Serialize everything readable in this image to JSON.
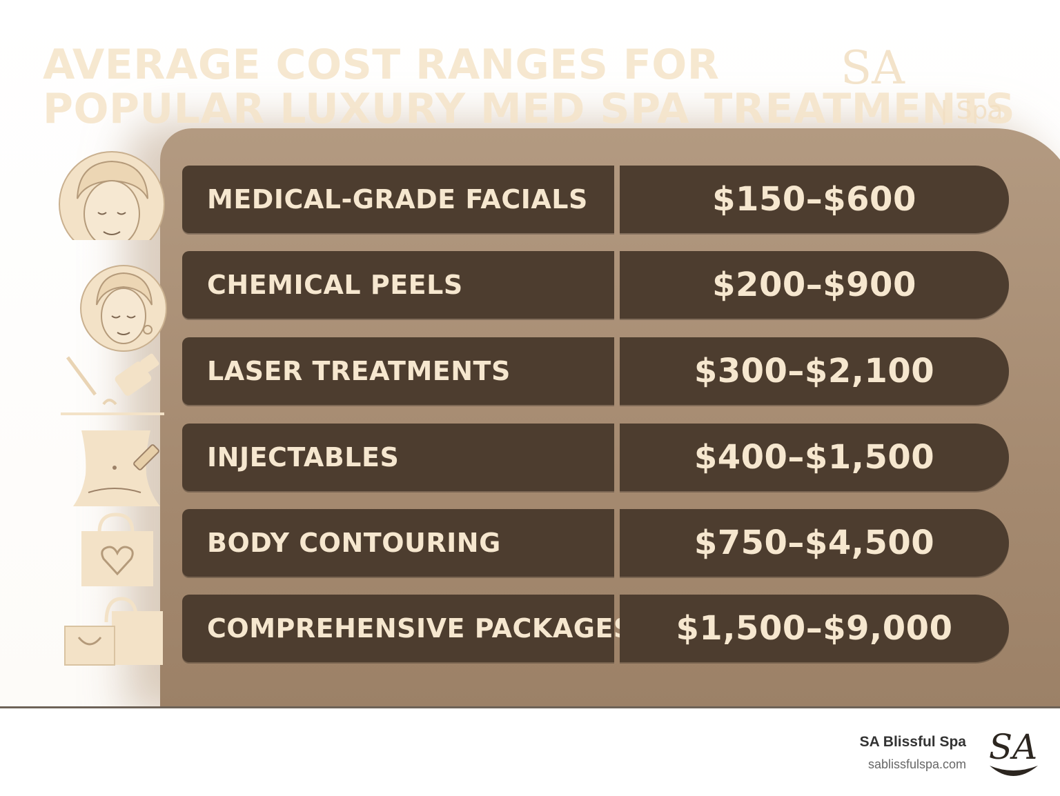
{
  "title": {
    "line1": "AVERAGE COST RANGES FOR",
    "line2": "POPULAR LUXURY MED SPA TREATMENTS"
  },
  "brand_mark": {
    "initials": "SA",
    "suffix": "| Spa"
  },
  "treatments": [
    {
      "name": "MEDICAL-GRADE FACIALS",
      "price": "$150–$600",
      "icon": "face-towel-icon"
    },
    {
      "name": "CHEMICAL PEELS",
      "price": "$200–$900",
      "icon": "face-icon"
    },
    {
      "name": "LASER TREATMENTS",
      "price": "$300–$2,100",
      "icon": "laser-device-icon"
    },
    {
      "name": "INJECTABLES",
      "price": "$400–$1,500",
      "icon": "torso-injection-icon"
    },
    {
      "name": "BODY CONTOURING",
      "price": "$750–$4,500",
      "icon": "shopping-bag-heart-icon"
    },
    {
      "name": "COMPREHENSIVE PACKAGES",
      "price": "$1,500–$9,000",
      "icon": "shopping-bags-icon"
    }
  ],
  "footer": {
    "brand_name": "SA Blissful Spa",
    "url": "sablissfulspa.com",
    "logo_text": "SA"
  },
  "colors": {
    "cell_background": "#4d3d2f",
    "cell_text": "#f6e7cf",
    "panel": "#a58a70",
    "title": "#f5e4c9",
    "icon": "#f3e2c7"
  }
}
